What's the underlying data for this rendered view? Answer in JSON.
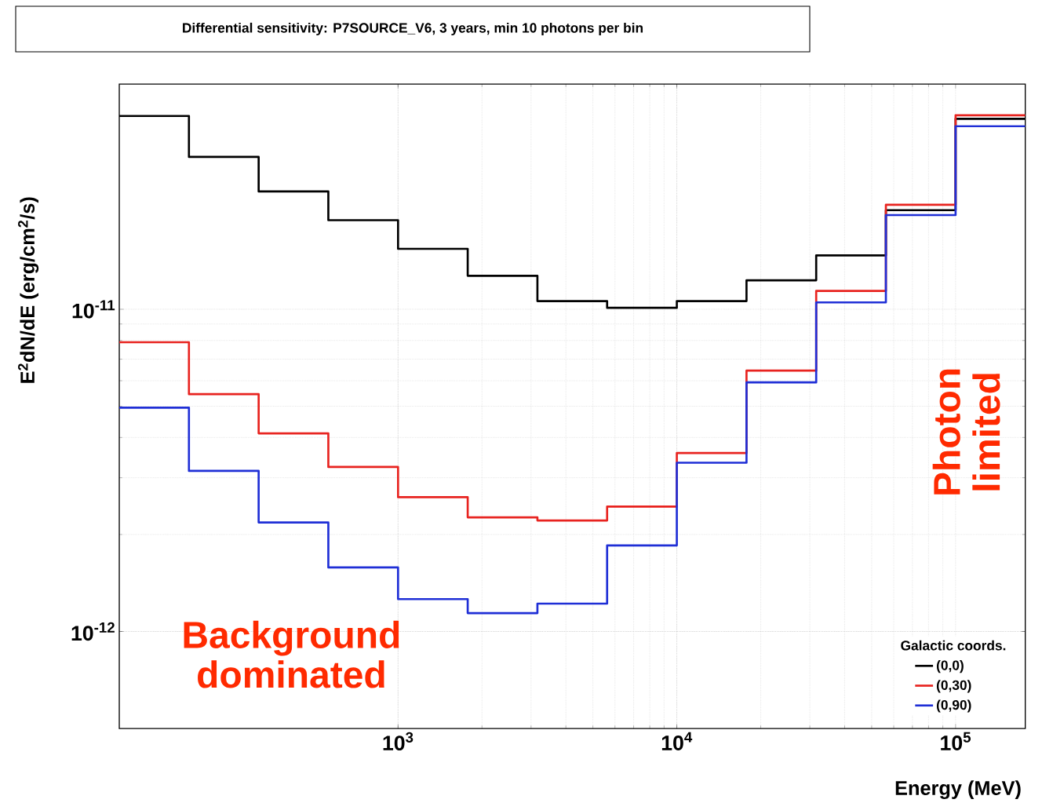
{
  "chart_data": {
    "type": "step",
    "title": "Differential sensitivity: P7SOURCE_V6, 3 years, min 10 photons per bin",
    "xlabel": "Energy (MeV)",
    "ylabel": "E$^{2}$dN/dE (erg/cm$^{2}$/s)",
    "legend_title": "Galactic coords.",
    "log": "xy",
    "grid": true,
    "legend": "bottom right",
    "xlim": [
      100,
      177828
    ],
    "ylim": [
      5e-13,
      5e-11
    ],
    "xticks": [
      {
        "value": 1000,
        "label": "10$^{3}$"
      },
      {
        "value": 10000,
        "label": "10$^{4}$"
      },
      {
        "value": 100000,
        "label": "10$^{5}$"
      }
    ],
    "yticks": [
      {
        "value": 1e-12,
        "label": "10$^{-12}$"
      },
      {
        "value": 1e-11,
        "label": "10$^{-11}$"
      }
    ],
    "x": [
      100,
      177.8,
      316.2,
      562.3,
      1000,
      1778,
      3162,
      5623,
      10000,
      17783,
      31623,
      56234,
      100000,
      177828
    ],
    "series": [
      {
        "name": "(0,0)",
        "color": "#000000",
        "values": [
          3.98e-11,
          2.97e-11,
          2.32e-11,
          1.89e-11,
          1.54e-11,
          1.27e-11,
          1.06e-11,
          1.01e-11,
          1.06e-11,
          1.23e-11,
          1.47e-11,
          2.03e-11,
          3.9e-11,
          3.9e-11
        ]
      },
      {
        "name": "(0,30)",
        "color": "#e8231f",
        "values": [
          7.9e-12,
          5.45e-12,
          4.12e-12,
          3.24e-12,
          2.61e-12,
          2.26e-12,
          2.21e-12,
          2.44e-12,
          3.58e-12,
          6.45e-12,
          1.14e-11,
          2.11e-11,
          4e-11,
          4e-11
        ]
      },
      {
        "name": "(0,90)",
        "color": "#1f2fd6",
        "values": [
          4.95e-12,
          3.15e-12,
          2.18e-12,
          1.58e-12,
          1.26e-12,
          1.14e-12,
          1.22e-12,
          1.85e-12,
          3.34e-12,
          5.93e-12,
          1.05e-11,
          1.96e-11,
          3.7e-11,
          3.7e-11
        ]
      }
    ],
    "annotations": [
      "Background dominated",
      "Photon limited"
    ]
  }
}
